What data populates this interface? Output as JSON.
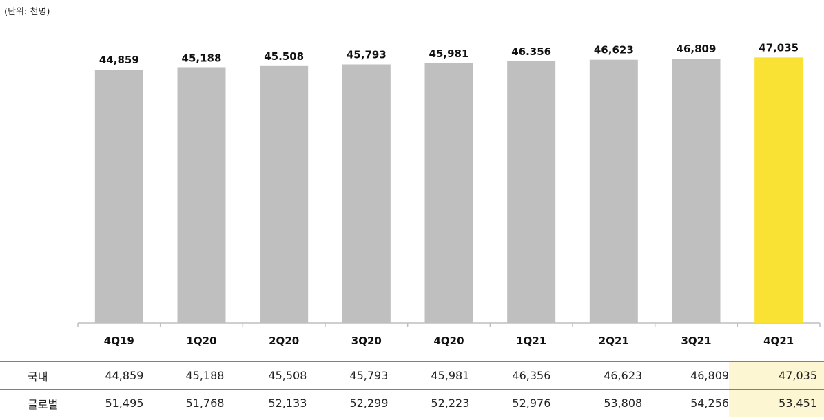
{
  "unit_label": "(단위: 천명)",
  "colors": {
    "bar": "#bfbfbf",
    "highlight_bar": "#fae235",
    "highlight_cell": "#fdf6d2",
    "axis": "#bfbfbf"
  },
  "chart_data": {
    "type": "bar",
    "categories": [
      "4Q19",
      "1Q20",
      "2Q20",
      "3Q20",
      "4Q20",
      "1Q21",
      "2Q21",
      "3Q21",
      "4Q21"
    ],
    "values": [
      44859,
      45188,
      45508,
      45793,
      45981,
      46356,
      46623,
      46809,
      47035
    ],
    "data_labels": [
      "44,859",
      "45,188",
      "45.508",
      "45,793",
      "45,981",
      "46.356",
      "46,623",
      "46,809",
      "47,035"
    ],
    "highlight_index": 8,
    "ylim": [
      0,
      50000
    ],
    "grid": false,
    "legend": "none"
  },
  "table": {
    "rows": [
      {
        "name": "국내",
        "values": [
          "44,859",
          "45,188",
          "45,508",
          "45,793",
          "45,981",
          "46,356",
          "46,623",
          "46,809",
          "47,035"
        ]
      },
      {
        "name": "글로벌",
        "values": [
          "51,495",
          "51,768",
          "52,133",
          "52,299",
          "52,223",
          "52,976",
          "53,808",
          "54,256",
          "53,451"
        ]
      }
    ]
  }
}
